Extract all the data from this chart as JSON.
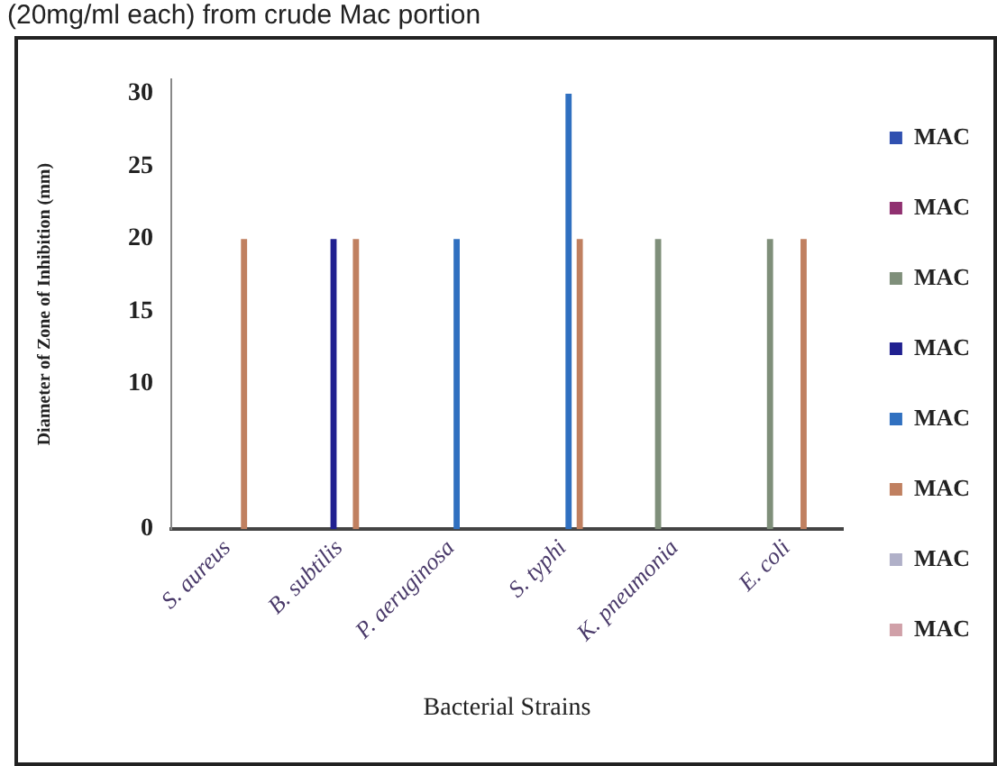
{
  "chart_data": {
    "type": "bar",
    "title": "(20mg/ml each) from crude Mac portion",
    "xlabel": "Bacterial Strains",
    "ylabel": "Diameter of Zone of Inhibition (mm)",
    "categories": [
      "S. aureus",
      "B. subtilis",
      "P. aeruginosa",
      "S. typhi",
      "K. pneumonia",
      "E. coli"
    ],
    "series": [
      {
        "name": "MAC",
        "color": "#3050b0",
        "values": [
          null,
          null,
          null,
          null,
          null,
          null
        ]
      },
      {
        "name": "MAC",
        "color": "#903070",
        "values": [
          null,
          null,
          null,
          null,
          null,
          null
        ]
      },
      {
        "name": "MAC",
        "color": "#7f8f7a",
        "values": [
          null,
          null,
          null,
          null,
          20,
          20
        ]
      },
      {
        "name": "MAC",
        "color": "#202090",
        "values": [
          null,
          20,
          null,
          null,
          null,
          null
        ]
      },
      {
        "name": "MAC",
        "color": "#3070c0",
        "values": [
          null,
          null,
          20,
          30,
          null,
          null
        ]
      },
      {
        "name": "MAC",
        "color": "#c08060",
        "values": [
          20,
          20,
          null,
          20,
          null,
          20
        ]
      },
      {
        "name": "MAC",
        "color": "#b0b0c8",
        "values": [
          null,
          null,
          null,
          null,
          null,
          null
        ]
      },
      {
        "name": "MAC",
        "color": "#d0a0a8",
        "values": [
          null,
          null,
          null,
          null,
          null,
          null
        ]
      }
    ],
    "ylim": [
      0,
      31
    ],
    "yticks": [
      0,
      10,
      15,
      20,
      25,
      30
    ],
    "grid": false,
    "legend": "right"
  }
}
